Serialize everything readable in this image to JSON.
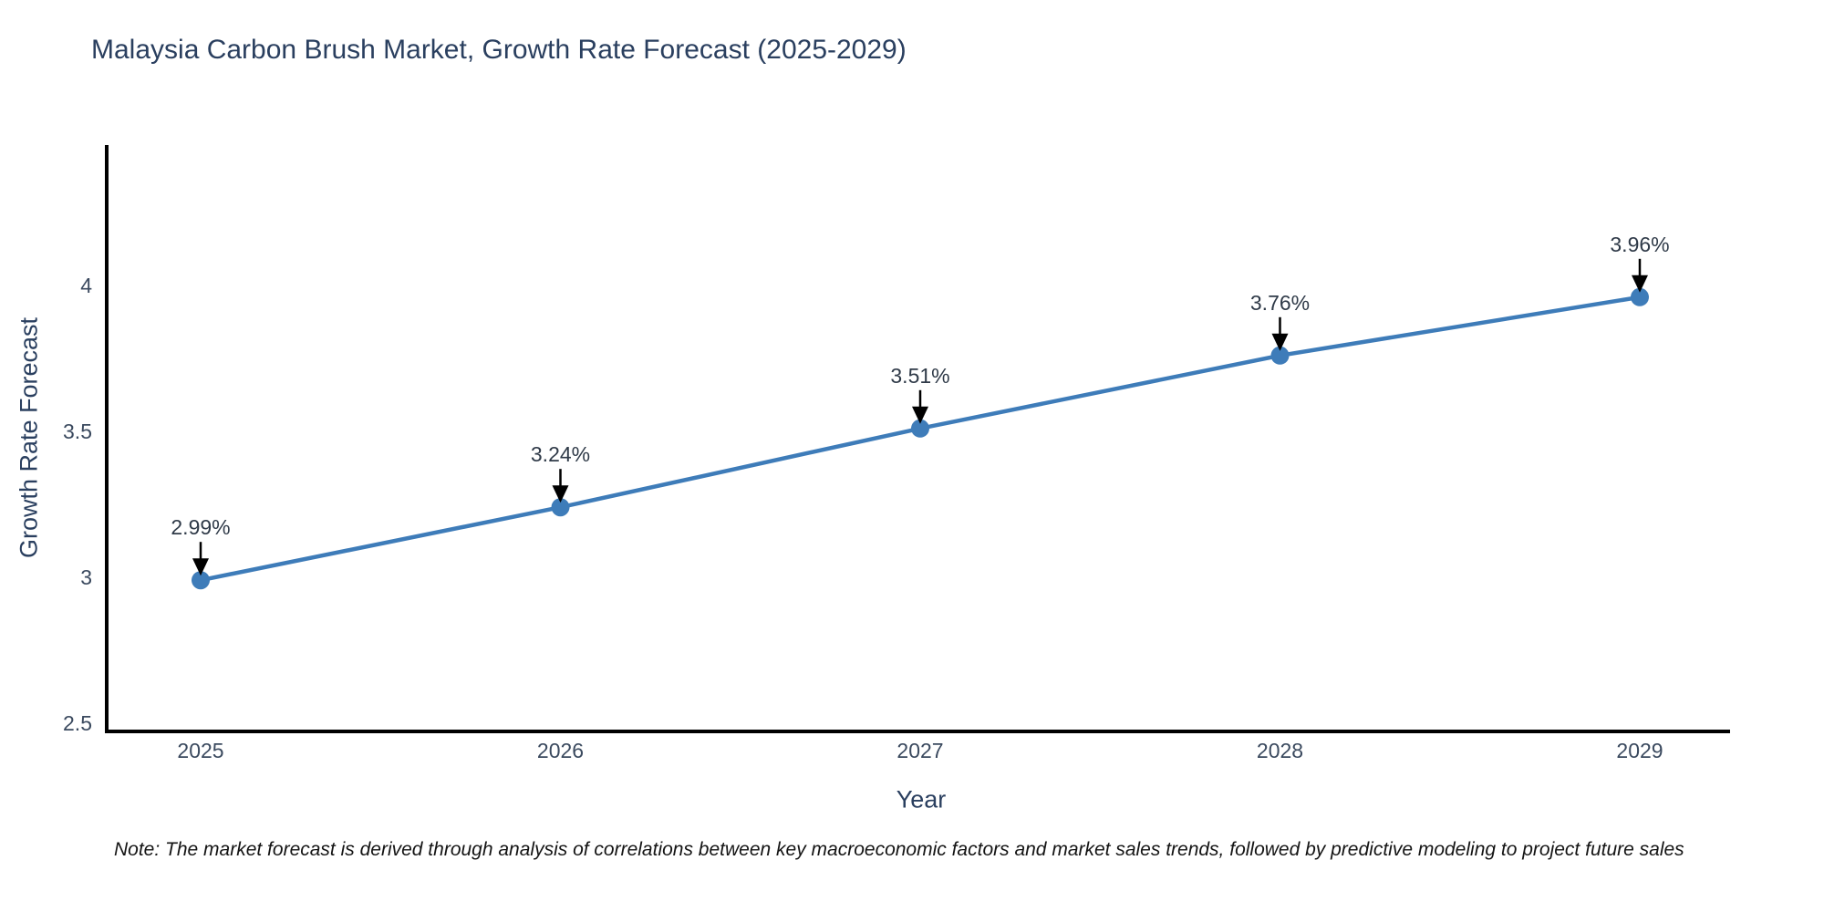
{
  "title": "Malaysia Carbon Brush Market, Growth Rate Forecast (2025-2029)",
  "note": "Note: The market forecast is derived through analysis of correlations between key macroeconomic factors and market sales trends, followed by predictive modeling to project future sales",
  "chart_data": {
    "type": "line",
    "x": [
      "2025",
      "2026",
      "2027",
      "2028",
      "2029"
    ],
    "series": [
      {
        "name": "Growth Rate Forecast",
        "values": [
          2.99,
          3.24,
          3.51,
          3.76,
          3.96
        ]
      }
    ],
    "point_labels": [
      "2.99%",
      "3.24%",
      "3.51%",
      "3.76%",
      "3.96%"
    ],
    "title": "Malaysia Carbon Brush Market, Growth Rate Forecast (2025-2029)",
    "xlabel": "Year",
    "ylabel": "Growth Rate Forecast",
    "ytick_labels": [
      "2.5",
      "3",
      "3.5",
      "4"
    ],
    "yticks": [
      2.5,
      3,
      3.5,
      4
    ],
    "ylim": [
      2.47,
      4.48
    ],
    "grid": false,
    "legend_position": "none",
    "annotations_have_arrows": true,
    "colors": {
      "line": "#3E7CB9",
      "marker": "#3E7CB9",
      "axis_line": "#000000",
      "arrow": "#000000",
      "title_text": "#2a3f5f",
      "axis_title_text": "#2a3f5f",
      "tick_text": "#3b4a5f",
      "annotation_text": "#2f3a48",
      "note_text": "#141414"
    }
  }
}
